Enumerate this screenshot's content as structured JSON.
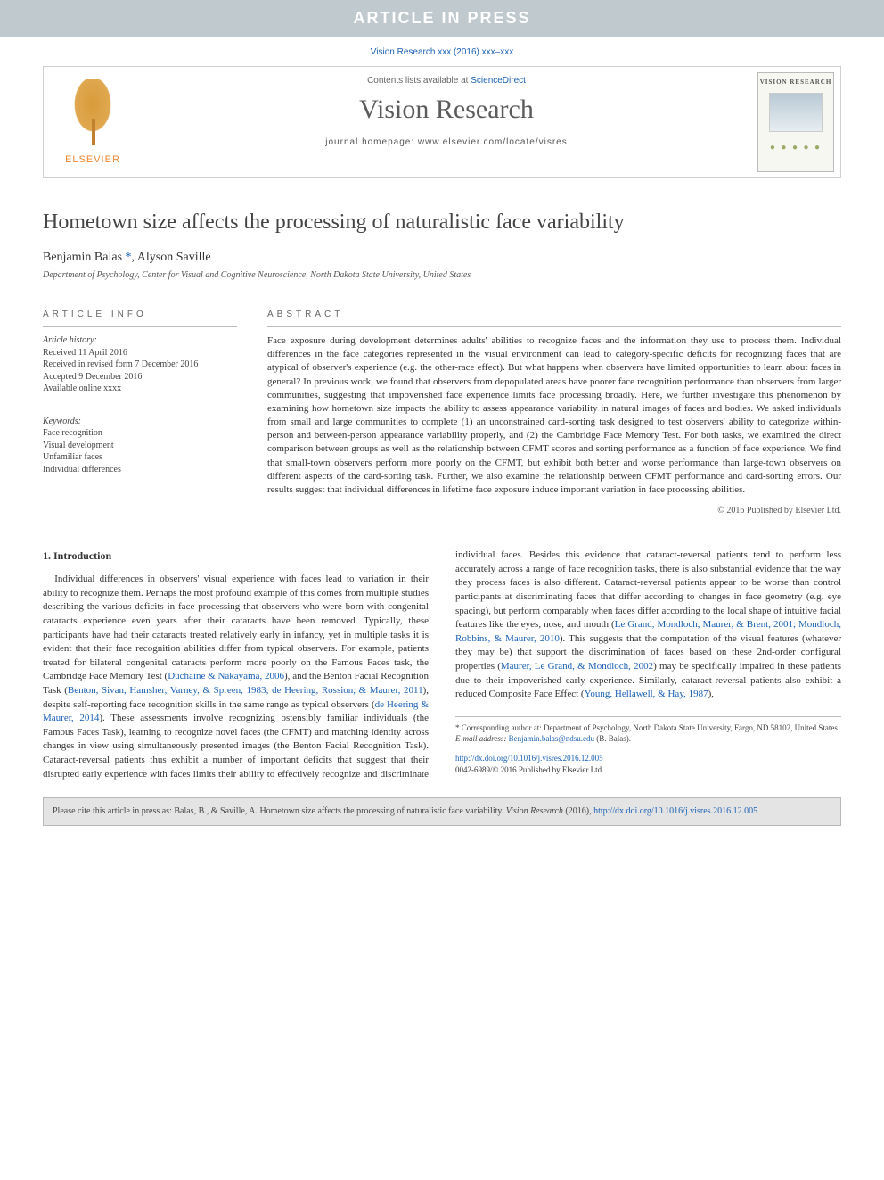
{
  "colors": {
    "banner_bg": "#bfc9ce",
    "banner_fg": "#ffffff",
    "link": "#1a61b4",
    "elsevier_orange": "#ee8833",
    "text": "#333333",
    "rule": "#bcbcbc",
    "citebox_bg": "#e4e4e4"
  },
  "banner": "ARTICLE IN PRESS",
  "citation_top": "Vision Research xxx (2016) xxx–xxx",
  "masthead": {
    "publisher": "ELSEVIER",
    "contents_prefix": "Contents lists available at ",
    "contents_link": "ScienceDirect",
    "journal": "Vision Research",
    "homepage_prefix": "journal homepage: ",
    "homepage": "www.elsevier.com/locate/visres",
    "cover_label": "VISION RESEARCH"
  },
  "title": "Hometown size affects the processing of naturalistic face variability",
  "authors_html": "Benjamin Balas <span class=\"corr\">*</span>, Alyson Saville",
  "affiliation": "Department of Psychology, Center for Visual and Cognitive Neuroscience, North Dakota State University, United States",
  "info": {
    "heading": "ARTICLE INFO",
    "history_label": "Article history:",
    "history": [
      "Received 11 April 2016",
      "Received in revised form 7 December 2016",
      "Accepted 9 December 2016",
      "Available online xxxx"
    ],
    "keywords_label": "Keywords:",
    "keywords": [
      "Face recognition",
      "Visual development",
      "Unfamiliar faces",
      "Individual differences"
    ]
  },
  "abstract": {
    "heading": "ABSTRACT",
    "text": "Face exposure during development determines adults' abilities to recognize faces and the information they use to process them. Individual differences in the face categories represented in the visual environment can lead to category-specific deficits for recognizing faces that are atypical of observer's experience (e.g. the other-race effect). But what happens when observers have limited opportunities to learn about faces in general? In previous work, we found that observers from depopulated areas have poorer face recognition performance than observers from larger communities, suggesting that impoverished face experience limits face processing broadly. Here, we further investigate this phenomenon by examining how hometown size impacts the ability to assess appearance variability in natural images of faces and bodies. We asked individuals from small and large communities to complete (1) an unconstrained card-sorting task designed to test observers' ability to categorize within-person and between-person appearance variability properly, and (2) the Cambridge Face Memory Test. For both tasks, we examined the direct comparison between groups as well as the relationship between CFMT scores and sorting performance as a function of face experience. We find that small-town observers perform more poorly on the CFMT, but exhibit both better and worse performance than large-town observers on different aspects of the card-sorting task. Further, we also examine the relationship between CFMT performance and card-sorting errors. Our results suggest that individual differences in lifetime face exposure induce important variation in face processing abilities.",
    "copyright": "© 2016 Published by Elsevier Ltd."
  },
  "section1": {
    "heading": "1. Introduction",
    "p1a": "Individual differences in observers' visual experience with faces lead to variation in their ability to recognize them. Perhaps the most profound example of this comes from multiple studies describing the various deficits in face processing that observers who were born with congenital cataracts experience even years after their cataracts have been removed. Typically, these participants have had their cataracts treated relatively early in infancy, yet in multiple tasks it is evident that their face recognition abilities differ from typical observers. For example, patients treated for bilateral congenital cataracts perform more poorly on the Famous Faces task, the Cambridge Face Memory Test (",
    "ref1": "Duchaine & Nakayama, 2006",
    "p1b": "), and the Benton Facial Recognition Task (",
    "ref2": "Benton, Sivan, Hamsher, Varney, & Spreen, 1983; de Heering, Rossion, & Maurer, 2011",
    "p1c": "), despite self-reporting face recognition skills in the same range as typical observers (",
    "ref3": "de Heering & Maurer, 2014",
    "p1d": "). These assessments involve recognizing ostensibly ",
    "p2a": "familiar individuals (the Famous Faces Task), learning to recognize novel faces (the CFMT) and matching identity across changes in view using simultaneously presented images (the Benton Facial Recognition Task). Cataract-reversal patients thus exhibit a number of important deficits that suggest that their disrupted early experience with faces limits their ability to effectively recognize and discriminate individual faces. Besides this evidence that cataract-reversal patients tend to perform less accurately across a range of face recognition tasks, there is also substantial evidence that the way they process faces is also different. Cataract-reversal patients appear to be worse than control participants at discriminating faces that differ according to changes in face geometry (e.g. eye spacing), but perform comparably when faces differ according to the local shape of intuitive facial features like the eyes, nose, and mouth (",
    "ref4": "Le Grand, Mondloch, Maurer, & Brent, 2001; Mondloch, Robbins, & Maurer, 2010",
    "p2b": "). This suggests that the computation of the visual features (whatever they may be) that support the discrimination of faces based on these 2nd-order configural properties (",
    "ref5": "Maurer, Le Grand, & Mondloch, 2002",
    "p2c": ") may be specifically impaired in these patients due to their impoverished early experience. Similarly, cataract-reversal patients also exhibit a reduced Composite Face Effect (",
    "ref6": "Young, Hellawell, & Hay, 1987",
    "p2d": "),"
  },
  "footnotes": {
    "corr": "* Corresponding author at: Department of Psychology, North Dakota State University, Fargo, ND 58102, United States.",
    "email_label": "E-mail address: ",
    "email": "Benjamin.balas@ndsu.edu",
    "email_suffix": " (B. Balas)."
  },
  "doi": {
    "url": "http://dx.doi.org/10.1016/j.visres.2016.12.005",
    "line2": "0042-6989/© 2016 Published by Elsevier Ltd."
  },
  "citebox": {
    "prefix": "Please cite this article in press as: Balas, B., & Saville, A. Hometown size affects the processing of naturalistic face variability. ",
    "journal_italic": "Vision Research",
    "year": " (2016), ",
    "url": "http://dx.doi.org/10.1016/j.visres.2016.12.005"
  }
}
